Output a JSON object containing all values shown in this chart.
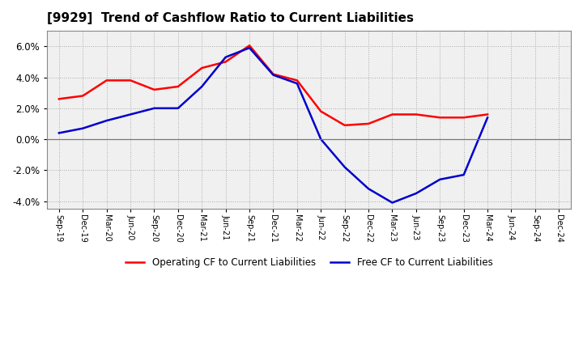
{
  "title": "[9929]  Trend of Cashflow Ratio to Current Liabilities",
  "x_labels": [
    "Sep-19",
    "Dec-19",
    "Mar-20",
    "Jun-20",
    "Sep-20",
    "Dec-20",
    "Mar-21",
    "Jun-21",
    "Sep-21",
    "Dec-21",
    "Mar-22",
    "Jun-22",
    "Sep-22",
    "Dec-22",
    "Mar-23",
    "Jun-23",
    "Sep-23",
    "Dec-23",
    "Mar-24",
    "Jun-24",
    "Sep-24",
    "Dec-24"
  ],
  "operating_cf": [
    2.6,
    2.8,
    3.8,
    3.8,
    3.2,
    3.4,
    4.6,
    5.0,
    6.05,
    4.2,
    3.8,
    1.8,
    0.9,
    1.0,
    1.6,
    1.6,
    1.4,
    1.4,
    1.6,
    null,
    null,
    null
  ],
  "free_cf": [
    0.4,
    0.7,
    1.2,
    1.6,
    2.0,
    2.0,
    3.4,
    5.3,
    5.9,
    4.15,
    3.6,
    0.0,
    -1.8,
    -3.2,
    -4.1,
    -3.5,
    -2.6,
    -2.3,
    1.4,
    null,
    null,
    null
  ],
  "operating_color": "#FF0000",
  "free_color": "#0000CC",
  "ylim": [
    -4.5,
    7.0
  ],
  "yticks": [
    -4.0,
    -2.0,
    0.0,
    2.0,
    4.0,
    6.0
  ],
  "background_color": "#FFFFFF",
  "plot_bg_color": "#F0F0F0",
  "grid_color": "#AAAAAA",
  "legend_operating": "Operating CF to Current Liabilities",
  "legend_free": "Free CF to Current Liabilities"
}
